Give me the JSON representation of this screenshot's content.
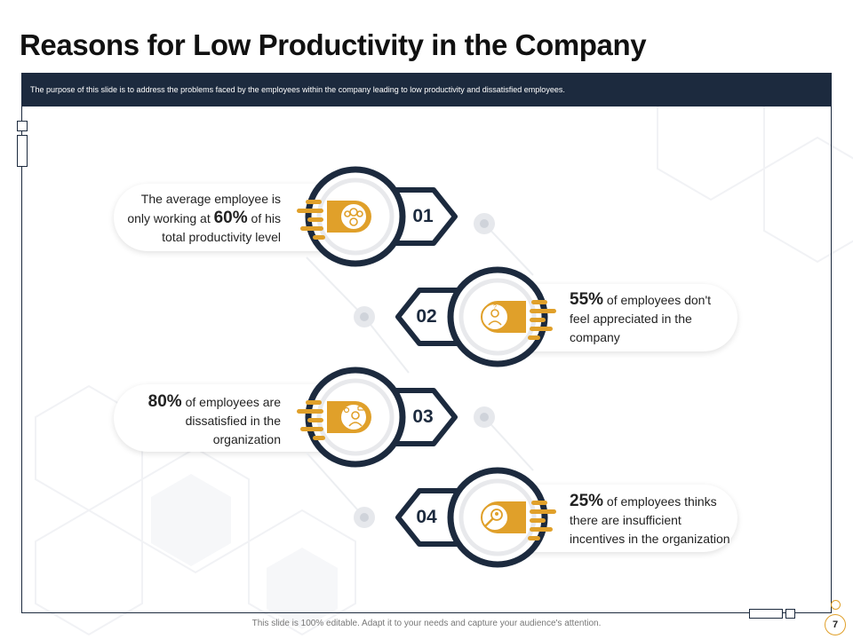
{
  "slide": {
    "title": "Reasons for Low Productivity in the Company",
    "subtitle": "The purpose of this slide is to address the problems faced by the employees within the company leading to low productivity and dissatisfied employees.",
    "footer": "This slide is 100% editable.  Adapt it to your needs and capture your audience's attention.",
    "page_number": "7"
  },
  "colors": {
    "navy": "#1c2a3e",
    "gold": "#e0a02a",
    "text": "#222222"
  },
  "items": [
    {
      "number": "01",
      "icon": "team-target-icon",
      "text_before": "The average employee is only working at ",
      "percent": "60%",
      "text_after": " of his total productivity level"
    },
    {
      "number": "02",
      "icon": "confused-employee-icon",
      "text_before": "",
      "percent": "55%",
      "text_after": " of employees don't feel appreciated in the company"
    },
    {
      "number": "03",
      "icon": "employee-chat-icon",
      "text_before": "",
      "percent": "80%",
      "text_after": " of employees are dissatisfied in the organization"
    },
    {
      "number": "04",
      "icon": "search-person-icon",
      "text_before": "",
      "percent": "25%",
      "text_after": " of employees thinks there are insufficient incentives in the organization"
    }
  ]
}
